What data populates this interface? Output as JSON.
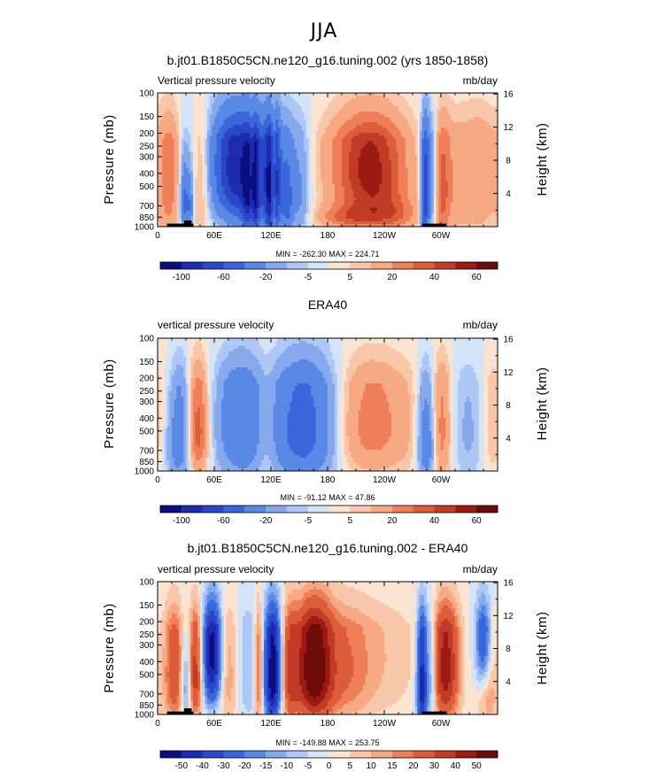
{
  "title": "JJA",
  "levels_main": [
    -100,
    -80,
    -60,
    -40,
    -20,
    -10,
    -5,
    0,
    5,
    10,
    20,
    30,
    40,
    50,
    60
  ],
  "levels_diff": [
    -50,
    -40,
    -30,
    -20,
    -15,
    -10,
    -5,
    0,
    5,
    10,
    15,
    20,
    30,
    40,
    50
  ],
  "colors": [
    "#0d0d82",
    "#1d2bb0",
    "#2a47cc",
    "#3a66dc",
    "#5a88e6",
    "#86a9ee",
    "#aec7f4",
    "#d4e4f8",
    "#fbe3d2",
    "#f8c7a9",
    "#f6a983",
    "#ef7f58",
    "#dd5d3b",
    "#c13b26",
    "#9b1b12",
    "#6e0c0a"
  ],
  "colorbar_main": {
    "labels": [
      "-100",
      "-60",
      "-20",
      "-5",
      "5",
      "20",
      "40",
      "60"
    ]
  },
  "colorbar_diff": {
    "labels": [
      "-50",
      "-40",
      "-30",
      "-20",
      "-15",
      "-10",
      "-5",
      "0",
      "5",
      "10",
      "15",
      "20",
      "30",
      "40",
      "50"
    ]
  },
  "panels": [
    {
      "title": "b.jt01.B1850C5CN.ne120_g16.tuning.002 (yrs 1850-1858)",
      "left_label": "Vertical pressure velocity",
      "right_label": "mb/day",
      "min_max": "MIN = -262.30   MAX =  224.71",
      "ylabel": "Pressure (mb)",
      "ylabel2": "Height (km)",
      "colorbar": "main"
    },
    {
      "title": "ERA40",
      "left_label": "vertical pressure velocity",
      "right_label": "mb/day",
      "min_max": "MIN =  -91.12   MAX =   47.86",
      "ylabel": "Pressure (mb)",
      "ylabel2": "Height (km)",
      "colorbar": "main"
    },
    {
      "title": "b.jt01.B1850C5CN.ne120_g16.tuning.002 - ERA40",
      "left_label": "vertical pressure velocity",
      "right_label": "mb/day",
      "min_max": "MIN = -149.88   MAX =  253.75",
      "ylabel": "Pressure (mb)",
      "ylabel2": "Height (km)",
      "colorbar": "diff"
    }
  ],
  "chart_data": [
    {
      "type": "heatmap",
      "title": "b.jt01.B1850C5CN.ne120_g16.tuning.002 (yrs 1850-1858)",
      "xlabel": "",
      "ylabel": "Pressure (mb)",
      "ylabel_right": "Height (km)",
      "x_ticks": [
        "0",
        "60E",
        "120E",
        "180",
        "120W",
        "60W"
      ],
      "x_tick_values": [
        0,
        60,
        120,
        180,
        240,
        300
      ],
      "xlim": [
        0,
        360
      ],
      "y_ticks": [
        "100",
        "150",
        "200",
        "250",
        "300",
        "400",
        "500",
        "700",
        "850",
        "1000"
      ],
      "y_tick_values": [
        100,
        150,
        200,
        250,
        300,
        400,
        500,
        700,
        850,
        1000
      ],
      "ylim": [
        1000,
        100
      ],
      "y2_ticks": [
        "4",
        "8",
        "12",
        "16"
      ],
      "y2_tick_values": [
        4,
        8,
        12,
        16
      ],
      "levels": [
        -100,
        -80,
        -60,
        -40,
        -20,
        -10,
        -5,
        0,
        5,
        10,
        20,
        30,
        40,
        50,
        60
      ],
      "min": -262.3,
      "max": 224.71,
      "units": "mb/day",
      "features": [
        {
          "lon": 12,
          "p": 450,
          "amp": 25,
          "lw": 8,
          "pw": 500
        },
        {
          "lon": 28,
          "p": 650,
          "amp": -45,
          "lw": 3,
          "pw": 260
        },
        {
          "lon": 34,
          "p": 700,
          "amp": -35,
          "lw": 2.5,
          "pw": 250
        },
        {
          "lon": 47,
          "p": 500,
          "amp": 15,
          "lw": 6,
          "pw": 500
        },
        {
          "lon": 80,
          "p": 350,
          "amp": -80,
          "lw": 16,
          "pw": 340
        },
        {
          "lon": 110,
          "p": 450,
          "amp": -55,
          "lw": 18,
          "pw": 420
        },
        {
          "lon": 95,
          "p": 650,
          "amp": -35,
          "lw": 4,
          "pw": 350
        },
        {
          "lon": 103,
          "p": 600,
          "amp": -45,
          "lw": 3,
          "pw": 420
        },
        {
          "lon": 118,
          "p": 550,
          "amp": -55,
          "lw": 3,
          "pw": 450
        },
        {
          "lon": 126,
          "p": 500,
          "amp": -45,
          "lw": 3,
          "pw": 460
        },
        {
          "lon": 137,
          "p": 650,
          "amp": -35,
          "lw": 4,
          "pw": 300
        },
        {
          "lon": 150,
          "p": 550,
          "amp": -20,
          "lw": 8,
          "pw": 400
        },
        {
          "lon": 100,
          "p": 450,
          "amp": 25,
          "lw": 1.5,
          "pw": 550
        },
        {
          "lon": 123,
          "p": 450,
          "amp": 25,
          "lw": 1.5,
          "pw": 550
        },
        {
          "lon": 228,
          "p": 450,
          "amp": 40,
          "lw": 26,
          "pw": 380
        },
        {
          "lon": 215,
          "p": 300,
          "amp": 18,
          "lw": 30,
          "pw": 250
        },
        {
          "lon": 200,
          "p": 850,
          "amp": 25,
          "lw": 22,
          "pw": 120
        },
        {
          "lon": 250,
          "p": 820,
          "amp": 20,
          "lw": 20,
          "pw": 150
        },
        {
          "lon": 283,
          "p": 600,
          "amp": -70,
          "lw": 3,
          "pw": 450
        },
        {
          "lon": 290,
          "p": 500,
          "amp": -35,
          "lw": 5,
          "pw": 400
        },
        {
          "lon": 300,
          "p": 550,
          "amp": 30,
          "lw": 7,
          "pw": 450
        },
        {
          "lon": 320,
          "p": 450,
          "amp": 15,
          "lw": 15,
          "pw": 500
        },
        {
          "lon": 345,
          "p": 400,
          "amp": 15,
          "lw": 12,
          "pw": 450
        }
      ]
    },
    {
      "type": "heatmap",
      "title": "ERA40",
      "xlabel": "",
      "ylabel": "Pressure (mb)",
      "ylabel_right": "Height (km)",
      "x_ticks": [
        "0",
        "60E",
        "120E",
        "180",
        "120W",
        "60W"
      ],
      "x_tick_values": [
        0,
        60,
        120,
        180,
        240,
        300
      ],
      "xlim": [
        0,
        360
      ],
      "y_ticks": [
        "100",
        "150",
        "200",
        "250",
        "300",
        "400",
        "500",
        "700",
        "850",
        "1000"
      ],
      "y_tick_values": [
        100,
        150,
        200,
        250,
        300,
        400,
        500,
        700,
        850,
        1000
      ],
      "ylim": [
        1000,
        100
      ],
      "y2_ticks": [
        "4",
        "8",
        "12",
        "16"
      ],
      "y2_tick_values": [
        4,
        8,
        12,
        16
      ],
      "levels": [
        -100,
        -80,
        -60,
        -40,
        -20,
        -10,
        -5,
        0,
        5,
        10,
        20,
        30,
        40,
        50,
        60
      ],
      "min": -91.12,
      "max": 47.86,
      "units": "mb/day",
      "features": [
        {
          "lon": 22,
          "p": 550,
          "amp": -40,
          "lw": 10,
          "pw": 380
        },
        {
          "lon": 42,
          "p": 500,
          "amp": 40,
          "lw": 8,
          "pw": 350
        },
        {
          "lon": 15,
          "p": 400,
          "amp": 10,
          "lw": 8,
          "pw": 400
        },
        {
          "lon": 88,
          "p": 450,
          "amp": -38,
          "lw": 18,
          "pw": 430
        },
        {
          "lon": 115,
          "p": 550,
          "amp": 12,
          "lw": 8,
          "pw": 400
        },
        {
          "lon": 150,
          "p": 500,
          "amp": -45,
          "lw": 22,
          "pw": 430
        },
        {
          "lon": 175,
          "p": 400,
          "amp": -15,
          "lw": 20,
          "pw": 500
        },
        {
          "lon": 225,
          "p": 450,
          "amp": 25,
          "lw": 34,
          "pw": 400
        },
        {
          "lon": 285,
          "p": 600,
          "amp": -40,
          "lw": 7,
          "pw": 380
        },
        {
          "lon": 300,
          "p": 500,
          "amp": 25,
          "lw": 8,
          "pw": 450
        },
        {
          "lon": 330,
          "p": 500,
          "amp": -12,
          "lw": 15,
          "pw": 450
        },
        {
          "lon": 355,
          "p": 450,
          "amp": 12,
          "lw": 10,
          "pw": 450
        }
      ]
    },
    {
      "type": "heatmap",
      "title": "b.jt01.B1850C5CN.ne120_g16.tuning.002 - ERA40",
      "xlabel": "",
      "ylabel": "Pressure (mb)",
      "ylabel_right": "Height (km)",
      "x_ticks": [
        "0",
        "60E",
        "120E",
        "180",
        "120W",
        "60W"
      ],
      "x_tick_values": [
        0,
        60,
        120,
        180,
        240,
        300
      ],
      "xlim": [
        0,
        360
      ],
      "y_ticks": [
        "100",
        "150",
        "200",
        "250",
        "300",
        "400",
        "500",
        "700",
        "850",
        "1000"
      ],
      "y_tick_values": [
        100,
        150,
        200,
        250,
        300,
        400,
        500,
        700,
        850,
        1000
      ],
      "ylim": [
        1000,
        100
      ],
      "y2_ticks": [
        "4",
        "8",
        "12",
        "16"
      ],
      "y2_tick_values": [
        4,
        8,
        12,
        16
      ],
      "levels": [
        -50,
        -40,
        -30,
        -20,
        -15,
        -10,
        -5,
        0,
        5,
        10,
        15,
        20,
        30,
        40,
        50
      ],
      "min": -149.88,
      "max": 253.75,
      "units": "mb/day",
      "features": [
        {
          "lon": 18,
          "p": 500,
          "amp": 28,
          "lw": 8,
          "pw": 420
        },
        {
          "lon": 30,
          "p": 600,
          "amp": -25,
          "lw": 4,
          "pw": 300
        },
        {
          "lon": 40,
          "p": 500,
          "amp": 35,
          "lw": 5,
          "pw": 380
        },
        {
          "lon": 58,
          "p": 350,
          "amp": -55,
          "lw": 7,
          "pw": 320
        },
        {
          "lon": 75,
          "p": 500,
          "amp": 15,
          "lw": 8,
          "pw": 450
        },
        {
          "lon": 95,
          "p": 450,
          "amp": -10,
          "lw": 10,
          "pw": 450
        },
        {
          "lon": 107,
          "p": 500,
          "amp": 25,
          "lw": 3,
          "pw": 500
        },
        {
          "lon": 122,
          "p": 500,
          "amp": -60,
          "lw": 6,
          "pw": 420
        },
        {
          "lon": 140,
          "p": 500,
          "amp": 25,
          "lw": 6,
          "pw": 450
        },
        {
          "lon": 165,
          "p": 450,
          "amp": 60,
          "lw": 14,
          "pw": 420
        },
        {
          "lon": 200,
          "p": 450,
          "amp": 18,
          "lw": 20,
          "pw": 450
        },
        {
          "lon": 245,
          "p": 350,
          "amp": 8,
          "lw": 25,
          "pw": 450
        },
        {
          "lon": 280,
          "p": 600,
          "amp": -50,
          "lw": 4,
          "pw": 450
        },
        {
          "lon": 290,
          "p": 500,
          "amp": -20,
          "lw": 4,
          "pw": 400
        },
        {
          "lon": 305,
          "p": 450,
          "amp": 45,
          "lw": 10,
          "pw": 420
        },
        {
          "lon": 345,
          "p": 250,
          "amp": -35,
          "lw": 6,
          "pw": 250
        },
        {
          "lon": 350,
          "p": 650,
          "amp": 15,
          "lw": 8,
          "pw": 400
        }
      ]
    }
  ]
}
